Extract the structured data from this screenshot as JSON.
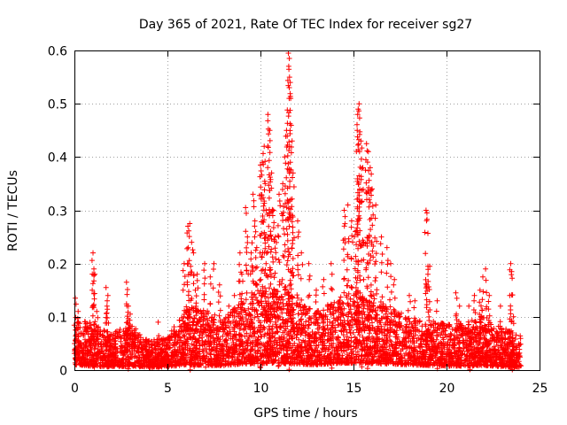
{
  "chart_data": {
    "type": "scatter",
    "title": "Day 365 of 2021, Rate Of TEC Index for receiver sg27",
    "xlabel": "GPS time / hours",
    "ylabel": "ROTI / TECUs",
    "xlim": [
      0,
      25
    ],
    "ylim": [
      0,
      0.6
    ],
    "x_ticks": [
      0,
      5,
      10,
      15,
      20,
      25
    ],
    "y_ticks": [
      0,
      0.1,
      0.2,
      0.3,
      0.4,
      0.5,
      0.6
    ],
    "grid": true,
    "legend": "none",
    "marker": "+",
    "marker_color": "#ff0000",
    "x_range_hours": [
      0,
      24
    ],
    "background_envelope": [
      {
        "x": 0.0,
        "base": 0.04,
        "spread": 0.05
      },
      {
        "x": 1.0,
        "base": 0.03,
        "spread": 0.05
      },
      {
        "x": 2.0,
        "base": 0.025,
        "spread": 0.04
      },
      {
        "x": 3.0,
        "base": 0.03,
        "spread": 0.05
      },
      {
        "x": 4.0,
        "base": 0.02,
        "spread": 0.03
      },
      {
        "x": 5.0,
        "base": 0.025,
        "spread": 0.03
      },
      {
        "x": 6.0,
        "base": 0.04,
        "spread": 0.07
      },
      {
        "x": 7.0,
        "base": 0.035,
        "spread": 0.07
      },
      {
        "x": 8.0,
        "base": 0.035,
        "spread": 0.05
      },
      {
        "x": 9.0,
        "base": 0.045,
        "spread": 0.08
      },
      {
        "x": 10.0,
        "base": 0.05,
        "spread": 0.09
      },
      {
        "x": 11.0,
        "base": 0.05,
        "spread": 0.09
      },
      {
        "x": 12.0,
        "base": 0.045,
        "spread": 0.07
      },
      {
        "x": 13.0,
        "base": 0.04,
        "spread": 0.06
      },
      {
        "x": 14.0,
        "base": 0.05,
        "spread": 0.07
      },
      {
        "x": 15.0,
        "base": 0.055,
        "spread": 0.08
      },
      {
        "x": 16.0,
        "base": 0.05,
        "spread": 0.08
      },
      {
        "x": 17.0,
        "base": 0.045,
        "spread": 0.06
      },
      {
        "x": 18.0,
        "base": 0.04,
        "spread": 0.05
      },
      {
        "x": 19.0,
        "base": 0.035,
        "spread": 0.05
      },
      {
        "x": 20.0,
        "base": 0.03,
        "spread": 0.05
      },
      {
        "x": 21.0,
        "base": 0.03,
        "spread": 0.05
      },
      {
        "x": 22.0,
        "base": 0.035,
        "spread": 0.06
      },
      {
        "x": 23.0,
        "base": 0.025,
        "spread": 0.05
      },
      {
        "x": 24.0,
        "base": 0.02,
        "spread": 0.04
      }
    ],
    "highlights": [
      {
        "x": 0.05,
        "y": 0.135
      },
      {
        "x": 0.2,
        "y": 0.11
      },
      {
        "x": 0.3,
        "y": 0.08
      },
      {
        "x": 1.0,
        "y": 0.22
      },
      {
        "x": 1.05,
        "y": 0.19
      },
      {
        "x": 1.1,
        "y": 0.18
      },
      {
        "x": 1.0,
        "y": 0.12
      },
      {
        "x": 1.2,
        "y": 0.11
      },
      {
        "x": 1.7,
        "y": 0.155
      },
      {
        "x": 1.8,
        "y": 0.14
      },
      {
        "x": 1.75,
        "y": 0.12
      },
      {
        "x": 2.8,
        "y": 0.165
      },
      {
        "x": 2.9,
        "y": 0.12
      },
      {
        "x": 3.0,
        "y": 0.105
      },
      {
        "x": 4.5,
        "y": 0.09
      },
      {
        "x": 5.9,
        "y": 0.2
      },
      {
        "x": 6.1,
        "y": 0.27
      },
      {
        "x": 6.2,
        "y": 0.275
      },
      {
        "x": 6.3,
        "y": 0.24
      },
      {
        "x": 6.4,
        "y": 0.22
      },
      {
        "x": 6.6,
        "y": 0.18
      },
      {
        "x": 6.5,
        "y": 0.15
      },
      {
        "x": 7.0,
        "y": 0.2
      },
      {
        "x": 7.3,
        "y": 0.175
      },
      {
        "x": 7.5,
        "y": 0.2
      },
      {
        "x": 7.8,
        "y": 0.16
      },
      {
        "x": 8.3,
        "y": 0.12
      },
      {
        "x": 8.6,
        "y": 0.14
      },
      {
        "x": 8.9,
        "y": 0.22
      },
      {
        "x": 9.0,
        "y": 0.18
      },
      {
        "x": 9.2,
        "y": 0.305
      },
      {
        "x": 9.3,
        "y": 0.25
      },
      {
        "x": 9.5,
        "y": 0.22
      },
      {
        "x": 9.6,
        "y": 0.33
      },
      {
        "x": 9.7,
        "y": 0.28
      },
      {
        "x": 9.8,
        "y": 0.23
      },
      {
        "x": 10.0,
        "y": 0.385
      },
      {
        "x": 10.1,
        "y": 0.39
      },
      {
        "x": 10.2,
        "y": 0.42
      },
      {
        "x": 10.25,
        "y": 0.35
      },
      {
        "x": 10.3,
        "y": 0.3
      },
      {
        "x": 10.4,
        "y": 0.48
      },
      {
        "x": 10.5,
        "y": 0.45
      },
      {
        "x": 10.6,
        "y": 0.37
      },
      {
        "x": 10.7,
        "y": 0.3
      },
      {
        "x": 10.8,
        "y": 0.25
      },
      {
        "x": 11.0,
        "y": 0.33
      },
      {
        "x": 11.2,
        "y": 0.35
      },
      {
        "x": 11.3,
        "y": 0.4
      },
      {
        "x": 11.4,
        "y": 0.45
      },
      {
        "x": 11.5,
        "y": 0.595
      },
      {
        "x": 11.55,
        "y": 0.585
      },
      {
        "x": 11.6,
        "y": 0.54
      },
      {
        "x": 11.7,
        "y": 0.43
      },
      {
        "x": 11.75,
        "y": 0.37
      },
      {
        "x": 12.0,
        "y": 0.28
      },
      {
        "x": 12.2,
        "y": 0.22
      },
      {
        "x": 12.6,
        "y": 0.2
      },
      {
        "x": 13.0,
        "y": 0.15
      },
      {
        "x": 13.4,
        "y": 0.17
      },
      {
        "x": 13.8,
        "y": 0.2
      },
      {
        "x": 14.5,
        "y": 0.3
      },
      {
        "x": 14.7,
        "y": 0.31
      },
      {
        "x": 14.9,
        "y": 0.28
      },
      {
        "x": 15.1,
        "y": 0.26
      },
      {
        "x": 15.2,
        "y": 0.45
      },
      {
        "x": 15.25,
        "y": 0.49
      },
      {
        "x": 15.3,
        "y": 0.5
      },
      {
        "x": 15.4,
        "y": 0.43
      },
      {
        "x": 15.5,
        "y": 0.38
      },
      {
        "x": 15.7,
        "y": 0.425
      },
      {
        "x": 15.8,
        "y": 0.41
      },
      {
        "x": 15.9,
        "y": 0.38
      },
      {
        "x": 16.0,
        "y": 0.34
      },
      {
        "x": 16.2,
        "y": 0.31
      },
      {
        "x": 16.5,
        "y": 0.25
      },
      {
        "x": 16.8,
        "y": 0.23
      },
      {
        "x": 17.0,
        "y": 0.2
      },
      {
        "x": 17.2,
        "y": 0.17
      },
      {
        "x": 18.0,
        "y": 0.14
      },
      {
        "x": 18.3,
        "y": 0.13
      },
      {
        "x": 18.9,
        "y": 0.3
      },
      {
        "x": 18.95,
        "y": 0.295
      },
      {
        "x": 19.1,
        "y": 0.195
      },
      {
        "x": 19.0,
        "y": 0.18
      },
      {
        "x": 19.5,
        "y": 0.13
      },
      {
        "x": 20.5,
        "y": 0.145
      },
      {
        "x": 20.7,
        "y": 0.12
      },
      {
        "x": 21.2,
        "y": 0.12
      },
      {
        "x": 21.5,
        "y": 0.14
      },
      {
        "x": 21.8,
        "y": 0.15
      },
      {
        "x": 21.95,
        "y": 0.175
      },
      {
        "x": 22.1,
        "y": 0.19
      },
      {
        "x": 22.3,
        "y": 0.14
      },
      {
        "x": 22.9,
        "y": 0.12
      },
      {
        "x": 23.4,
        "y": 0.14
      },
      {
        "x": 23.45,
        "y": 0.2
      },
      {
        "x": 23.5,
        "y": 0.185
      },
      {
        "x": 23.6,
        "y": 0.1
      }
    ]
  }
}
